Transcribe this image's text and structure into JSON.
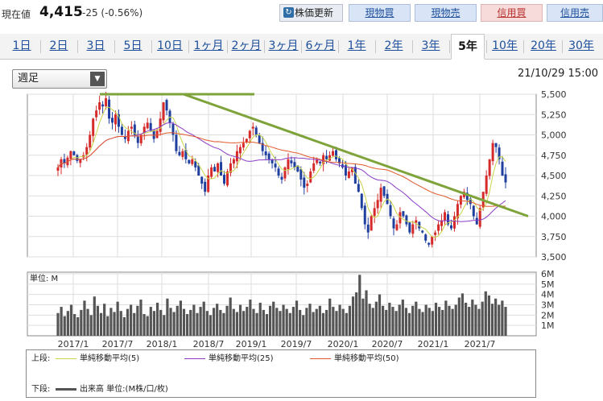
{
  "header": {
    "price_label": "現在値",
    "price": "4,415",
    "change": "-25 (-0.56%)",
    "refresh_label": "株価更新",
    "buy_label": "現物買",
    "sell_label": "現物売",
    "margin_buy_label": "信用買",
    "margin_sell_label": "信用売"
  },
  "tabs": [
    "1日",
    "2日",
    "3日",
    "5日",
    "10日",
    "1ヶ月",
    "2ヶ月",
    "3ヶ月",
    "6ヶ月",
    "1年",
    "2年",
    "3年",
    "5年",
    "10年",
    "20年",
    "30年"
  ],
  "active_tab": "5年",
  "period_select": "週足",
  "datetime": "21/10/29 15:00",
  "chart_data": [
    {
      "type": "candlestick",
      "title": "",
      "ylim": [
        3500,
        5500
      ],
      "y_ticks": [
        "3,500",
        "3,750",
        "4,000",
        "4,250",
        "4,500",
        "4,750",
        "5,000",
        "5,250",
        "5,500"
      ],
      "x_ticks": [
        "2017/1",
        "2017/7",
        "2018/1",
        "2018/7",
        "2019/1",
        "2019/7",
        "2020/1",
        "2020/7",
        "2021/1",
        "2021/7"
      ],
      "close_series_weekly_approx": [
        4600,
        4700,
        4650,
        4720,
        4800,
        4750,
        4680,
        4700,
        4750,
        4850,
        5000,
        5200,
        5300,
        5400,
        5350,
        5450,
        5200,
        5150,
        5250,
        5100,
        5000,
        4950,
        5050,
        5100,
        5000,
        4900,
        5000,
        5100,
        5150,
        5050,
        4950,
        5050,
        5200,
        5400,
        5300,
        5150,
        5000,
        4800,
        4750,
        4800,
        4700,
        4650,
        4700,
        4600,
        4500,
        4400,
        4300,
        4500,
        4600,
        4550,
        4650,
        4500,
        4400,
        4550,
        4650,
        4700,
        4800,
        4850,
        4900,
        4950,
        5050,
        5100,
        5000,
        4900,
        4800,
        4750,
        4700,
        4650,
        4600,
        4500,
        4450,
        4600,
        4700,
        4650,
        4600,
        4550,
        4450,
        4350,
        4400,
        4550,
        4650,
        4700,
        4650,
        4750,
        4700,
        4750,
        4800,
        4700,
        4650,
        4600,
        4500,
        4550,
        4600,
        4400,
        4300,
        4100,
        3900,
        3800,
        4000,
        4100,
        4200,
        4350,
        4250,
        4150,
        4000,
        3850,
        3900,
        4050,
        4000,
        3900,
        3800,
        3900,
        3950,
        3850,
        3800,
        3700,
        3650,
        3750,
        3800,
        3900,
        3950,
        4050,
        3900,
        3850,
        4000,
        4150,
        4250,
        4300,
        4200,
        4150,
        4000,
        3900,
        4100,
        4300,
        4500,
        4700,
        4900,
        4850,
        4700,
        4500,
        4415
      ],
      "moving_averages": [
        {
          "name": "単純移動平均(5)",
          "color": "#c9d44a"
        },
        {
          "name": "単純移動平均(25)",
          "color": "#8a3bc7"
        },
        {
          "name": "単純移動平均(50)",
          "color": "#e2582b"
        }
      ],
      "trendlines": [
        {
          "from": [
            "2017/4",
            5500
          ],
          "to": [
            "2019/2",
            5500
          ]
        },
        {
          "from": [
            "2018/2",
            5500
          ],
          "to": [
            "2021/12",
            4000
          ]
        }
      ],
      "trendline_color": "#7ea33a",
      "up_color": "#d62a2a",
      "down_color": "#1f3f9f",
      "grid": true
    },
    {
      "type": "bar",
      "title": "",
      "unit_label": "単位: M",
      "ylim": [
        0,
        6
      ],
      "y_ticks": [
        "1M",
        "2M",
        "3M",
        "4M",
        "5M",
        "6M"
      ],
      "values_weekly_approx": [
        2.2,
        2.8,
        1.9,
        2.4,
        3.0,
        2.1,
        1.8,
        2.5,
        3.4,
        2.6,
        2.0,
        3.8,
        2.9,
        2.2,
        3.1,
        1.9,
        2.7,
        2.3,
        3.3,
        2.4,
        1.8,
        2.6,
        3.0,
        2.2,
        2.9,
        3.5,
        2.1,
        1.9,
        2.8,
        2.4,
        3.2,
        2.5,
        2.0,
        3.6,
        2.7,
        2.3,
        2.9,
        3.4,
        2.6,
        2.1,
        2.5,
        3.0,
        2.2,
        2.8,
        3.3,
        2.4,
        2.0,
        2.7,
        3.1,
        2.5,
        2.2,
        2.9,
        3.7,
        2.6,
        2.3,
        3.0,
        2.4,
        2.8,
        3.5,
        2.6,
        2.2,
        3.2,
        2.5,
        2.1,
        2.9,
        3.3,
        2.7,
        2.4,
        3.0,
        2.6,
        2.2,
        2.8,
        3.4,
        2.5,
        2.0,
        2.7,
        3.1,
        2.3,
        2.6,
        2.9,
        2.2,
        2.5,
        3.6,
        2.8,
        2.4,
        3.0,
        2.6,
        2.2,
        2.9,
        3.8,
        4.2,
        5.9,
        3.6,
        4.4,
        3.1,
        2.7,
        3.3,
        4.0,
        2.9,
        2.5,
        3.2,
        2.8,
        2.4,
        3.0,
        3.5,
        2.7,
        2.2,
        2.9,
        3.3,
        2.6,
        2.3,
        3.0,
        2.7,
        2.4,
        3.2,
        2.8,
        2.5,
        3.4,
        2.9,
        2.6,
        3.0,
        3.7,
        4.1,
        3.2,
        2.8,
        3.5,
        3.0,
        2.6,
        3.3,
        4.3,
        3.9,
        3.1,
        3.6,
        3.0,
        3.4,
        2.8
      ]
    }
  ],
  "legend": {
    "upper_label": "上段:",
    "lower_label": "下段:",
    "volume_label": "出来高 単位:(M株/口/枚)"
  }
}
